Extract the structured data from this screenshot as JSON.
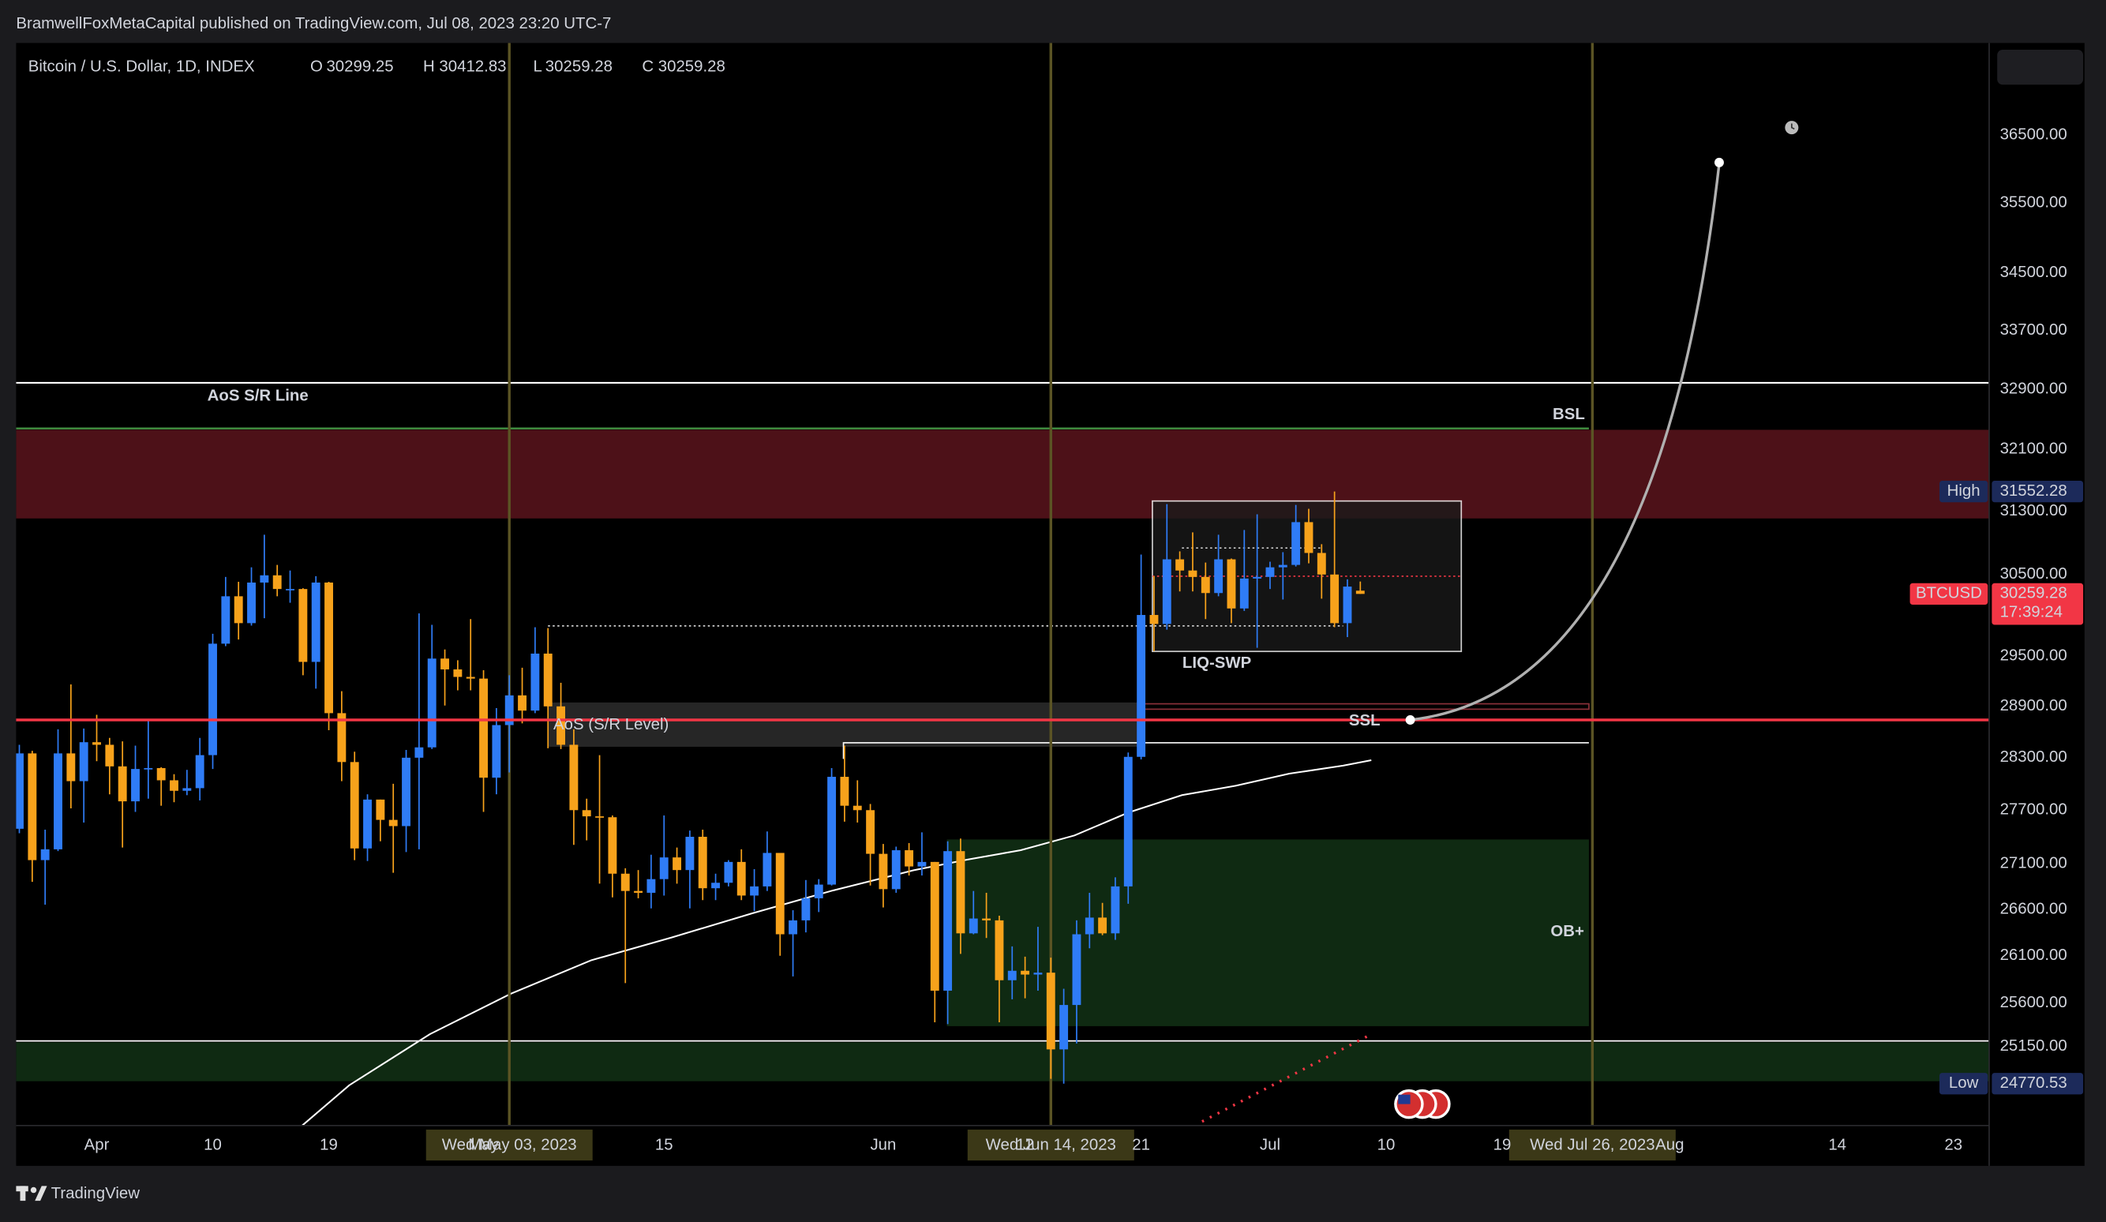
{
  "header": {
    "published": "BramwellFoxMetaCapital published on TradingView.com, Jul 08, 2023 23:20 UTC-7"
  },
  "footer": {
    "brand": "TradingView"
  },
  "chart_data": {
    "type": "candlestick",
    "title": "Bitcoin / U.S. Dollar, 1D, INDEX",
    "ohlc_letters": [
      "O",
      "H",
      "L",
      "C"
    ],
    "up_color": "#2f7cf6",
    "down_color": "#f7a21b",
    "log_scale": true,
    "grid": false,
    "x": [
      "2023-03-26",
      "2023-03-27",
      "2023-03-28",
      "2023-03-29",
      "2023-03-30",
      "2023-03-31",
      "2023-04-01",
      "2023-04-02",
      "2023-04-03",
      "2023-04-04",
      "2023-04-05",
      "2023-04-06",
      "2023-04-07",
      "2023-04-08",
      "2023-04-09",
      "2023-04-10",
      "2023-04-11",
      "2023-04-12",
      "2023-04-13",
      "2023-04-14",
      "2023-04-15",
      "2023-04-16",
      "2023-04-17",
      "2023-04-18",
      "2023-04-19",
      "2023-04-20",
      "2023-04-21",
      "2023-04-22",
      "2023-04-23",
      "2023-04-24",
      "2023-04-25",
      "2023-04-26",
      "2023-04-27",
      "2023-04-28",
      "2023-04-29",
      "2023-04-30",
      "2023-05-01",
      "2023-05-02",
      "2023-05-03",
      "2023-05-04",
      "2023-05-05",
      "2023-05-06",
      "2023-05-07",
      "2023-05-08",
      "2023-05-09",
      "2023-05-10",
      "2023-05-11",
      "2023-05-12",
      "2023-05-13",
      "2023-05-14",
      "2023-05-15",
      "2023-05-16",
      "2023-05-17",
      "2023-05-18",
      "2023-05-19",
      "2023-05-20",
      "2023-05-21",
      "2023-05-22",
      "2023-05-23",
      "2023-05-24",
      "2023-05-25",
      "2023-05-26",
      "2023-05-27",
      "2023-05-28",
      "2023-05-29",
      "2023-05-30",
      "2023-05-31",
      "2023-06-01",
      "2023-06-02",
      "2023-06-03",
      "2023-06-04",
      "2023-06-05",
      "2023-06-06",
      "2023-06-07",
      "2023-06-08",
      "2023-06-09",
      "2023-06-10",
      "2023-06-11",
      "2023-06-12",
      "2023-06-13",
      "2023-06-14",
      "2023-06-15",
      "2023-06-16",
      "2023-06-17",
      "2023-06-18",
      "2023-06-19",
      "2023-06-20",
      "2023-06-21",
      "2023-06-22",
      "2023-06-23",
      "2023-06-24",
      "2023-06-25",
      "2023-06-26",
      "2023-06-27",
      "2023-06-28",
      "2023-06-29",
      "2023-06-30",
      "2023-07-01",
      "2023-07-02",
      "2023-07-03",
      "2023-07-04",
      "2023-07-05",
      "2023-07-06",
      "2023-07-07",
      "2023-07-08"
    ],
    "open": [
      27490,
      28350,
      27140,
      27260,
      28350,
      28030,
      28480,
      28450,
      28200,
      27800,
      28170,
      28180,
      28040,
      27920,
      27950,
      28330,
      29650,
      30230,
      29900,
      30400,
      30490,
      30320,
      30320,
      29430,
      30400,
      28820,
      28250,
      27270,
      27820,
      27590,
      27520,
      28300,
      28420,
      29470,
      29340,
      29250,
      29230,
      28070,
      28680,
      29030,
      28850,
      29530,
      28900,
      28450,
      27700,
      27630,
      27620,
      26990,
      26800,
      26780,
      26930,
      27170,
      27030,
      27400,
      26830,
      26890,
      27120,
      26750,
      26850,
      27220,
      26330,
      26480,
      26720,
      26870,
      28080,
      27750,
      27700,
      27210,
      26820,
      27250,
      27070,
      27120,
      25730,
      27240,
      26340,
      26500,
      26480,
      25840,
      25940,
      25900,
      25920,
      25120,
      25580,
      26330,
      26510,
      26340,
      26850,
      28310,
      30000,
      29890,
      30690,
      30550,
      30470,
      30270,
      30690,
      30080,
      30450,
      30470,
      30590,
      30620,
      31160,
      30770,
      30500,
      29900,
      30299.25
    ],
    "high": [
      28450,
      28380,
      27480,
      28630,
      29160,
      28640,
      28800,
      28530,
      28490,
      28440,
      28750,
      28190,
      28110,
      28160,
      28530,
      29770,
      30470,
      30410,
      30590,
      31000,
      30620,
      30550,
      30330,
      30480,
      30410,
      29080,
      28370,
      27880,
      27820,
      28000,
      28390,
      30020,
      29880,
      29580,
      29450,
      29950,
      29330,
      28880,
      29270,
      29360,
      29850,
      29840,
      29180,
      28630,
      27830,
      28330,
      27640,
      27050,
      27030,
      27200,
      27640,
      27280,
      27470,
      27480,
      26990,
      27140,
      27260,
      27040,
      27460,
      27220,
      26590,
      26920,
      26930,
      28180,
      28440,
      28040,
      27770,
      27320,
      27290,
      27330,
      27450,
      27120,
      27350,
      27380,
      26800,
      26780,
      26530,
      26200,
      26090,
      26410,
      26080,
      25750,
      26480,
      26780,
      26670,
      26950,
      28360,
      30750,
      30480,
      31390,
      30790,
      31030,
      30650,
      31000,
      30700,
      31060,
      31260,
      30660,
      30780,
      31380,
      31330,
      30880,
      31552.28,
      30440,
      30412.83
    ],
    "low": [
      27440,
      26900,
      26650,
      27240,
      27720,
      27560,
      28260,
      27880,
      27280,
      27680,
      27830,
      27750,
      27790,
      27870,
      27810,
      28170,
      29620,
      29700,
      29870,
      29960,
      30230,
      30150,
      29270,
      29110,
      28620,
      28030,
      27140,
      27130,
      27350,
      27000,
      27230,
      27260,
      28400,
      28910,
      29090,
      29090,
      27680,
      27880,
      28130,
      28700,
      28820,
      28410,
      28400,
      27310,
      27360,
      26880,
      26730,
      25810,
      26720,
      26610,
      26750,
      26880,
      26610,
      26700,
      26700,
      26850,
      26700,
      26580,
      26800,
      26100,
      25880,
      26350,
      26570,
      26860,
      27570,
      27560,
      26860,
      26620,
      26780,
      26970,
      26970,
      25400,
      25380,
      26120,
      26330,
      26290,
      25400,
      25640,
      25650,
      25730,
      24820,
      24770.53,
      25180,
      26180,
      26320,
      26270,
      26660,
      28280,
      29560,
      29820,
      30290,
      30290,
      29950,
      30230,
      29900,
      30050,
      29600,
      30320,
      30190,
      30600,
      30640,
      30200,
      29850,
      29730,
      30259.28
    ],
    "close": [
      28350,
      27140,
      27260,
      28350,
      28030,
      28480,
      28450,
      28200,
      27800,
      28170,
      28180,
      28040,
      27920,
      27950,
      28330,
      29650,
      30230,
      29900,
      30400,
      30490,
      30320,
      30320,
      29430,
      30400,
      28820,
      28250,
      27270,
      27820,
      27590,
      27520,
      28300,
      28420,
      29470,
      29340,
      29250,
      29230,
      28070,
      28680,
      29030,
      28850,
      29530,
      28900,
      28450,
      27700,
      27630,
      27620,
      26990,
      26800,
      26780,
      26930,
      27170,
      27030,
      27400,
      26830,
      26890,
      27120,
      26750,
      26850,
      27220,
      26330,
      26480,
      26720,
      26870,
      28080,
      27750,
      27700,
      27210,
      26820,
      27250,
      27070,
      27120,
      25730,
      27240,
      26340,
      26500,
      26480,
      25840,
      25940,
      25900,
      25920,
      25120,
      25580,
      26330,
      26510,
      26340,
      26850,
      28310,
      30000,
      29890,
      30690,
      30550,
      30470,
      30270,
      30690,
      30080,
      30450,
      30470,
      30590,
      30620,
      31160,
      30770,
      30500,
      29900,
      30350,
      30259.28
    ],
    "xlim": [
      "2023-03-25",
      "2023-08-27"
    ],
    "xticks": [
      {
        "value": "2023-04-01",
        "label": "Apr"
      },
      {
        "value": "2023-04-10",
        "label": "10"
      },
      {
        "value": "2023-04-19",
        "label": "19"
      },
      {
        "value": "2023-05-01",
        "label": "May"
      },
      {
        "value": "2023-05-15",
        "label": "15"
      },
      {
        "value": "2023-06-01",
        "label": "Jun"
      },
      {
        "value": "2023-06-12",
        "label": "12"
      },
      {
        "value": "2023-06-21",
        "label": "21"
      },
      {
        "value": "2023-07-01",
        "label": "Jul"
      },
      {
        "value": "2023-07-10",
        "label": "10"
      },
      {
        "value": "2023-07-19",
        "label": "19"
      },
      {
        "value": "2023-08-01",
        "label": "Aug"
      },
      {
        "value": "2023-08-14",
        "label": "14"
      },
      {
        "value": "2023-08-23",
        "label": "23"
      }
    ],
    "ylim": [
      24350,
      37900
    ],
    "yticks": [
      {
        "value": 36500,
        "label": "36500.00"
      },
      {
        "value": 35500,
        "label": "35500.00"
      },
      {
        "value": 34500,
        "label": "34500.00"
      },
      {
        "value": 33700,
        "label": "33700.00"
      },
      {
        "value": 32900,
        "label": "32900.00"
      },
      {
        "value": 32100,
        "label": "32100.00"
      },
      {
        "value": 31300,
        "label": "31300.00"
      },
      {
        "value": 30500,
        "label": "30500.00"
      },
      {
        "value": 29500,
        "label": "29500.00"
      },
      {
        "value": 28900,
        "label": "28900.00"
      },
      {
        "value": 28300,
        "label": "28300.00"
      },
      {
        "value": 27700,
        "label": "27700.00"
      },
      {
        "value": 27100,
        "label": "27100.00"
      },
      {
        "value": 26600,
        "label": "26600.00"
      },
      {
        "value": 26100,
        "label": "26100.00"
      },
      {
        "value": 25600,
        "label": "25600.00"
      },
      {
        "value": 25150,
        "label": "25150.00"
      }
    ],
    "vertical_lines": [
      {
        "x": "2023-05-03",
        "label": "Wed May 03, 2023"
      },
      {
        "x": "2023-06-14",
        "label": "Wed Jun 14, 2023"
      },
      {
        "x": "2023-07-26",
        "label": "Wed Jul 26, 2023"
      }
    ],
    "price_tags": {
      "high": "High",
      "low": "Low",
      "symbol": "BTCUSD",
      "countdown": "17:39:24"
    },
    "annotations": {
      "sr_line": "AoS S/R Line",
      "bsl": "BSL",
      "sr_level": "AoS (S/R Level)",
      "ssl": "SSL",
      "ob": "OB+",
      "liq": "LIQ-SWP"
    }
  }
}
